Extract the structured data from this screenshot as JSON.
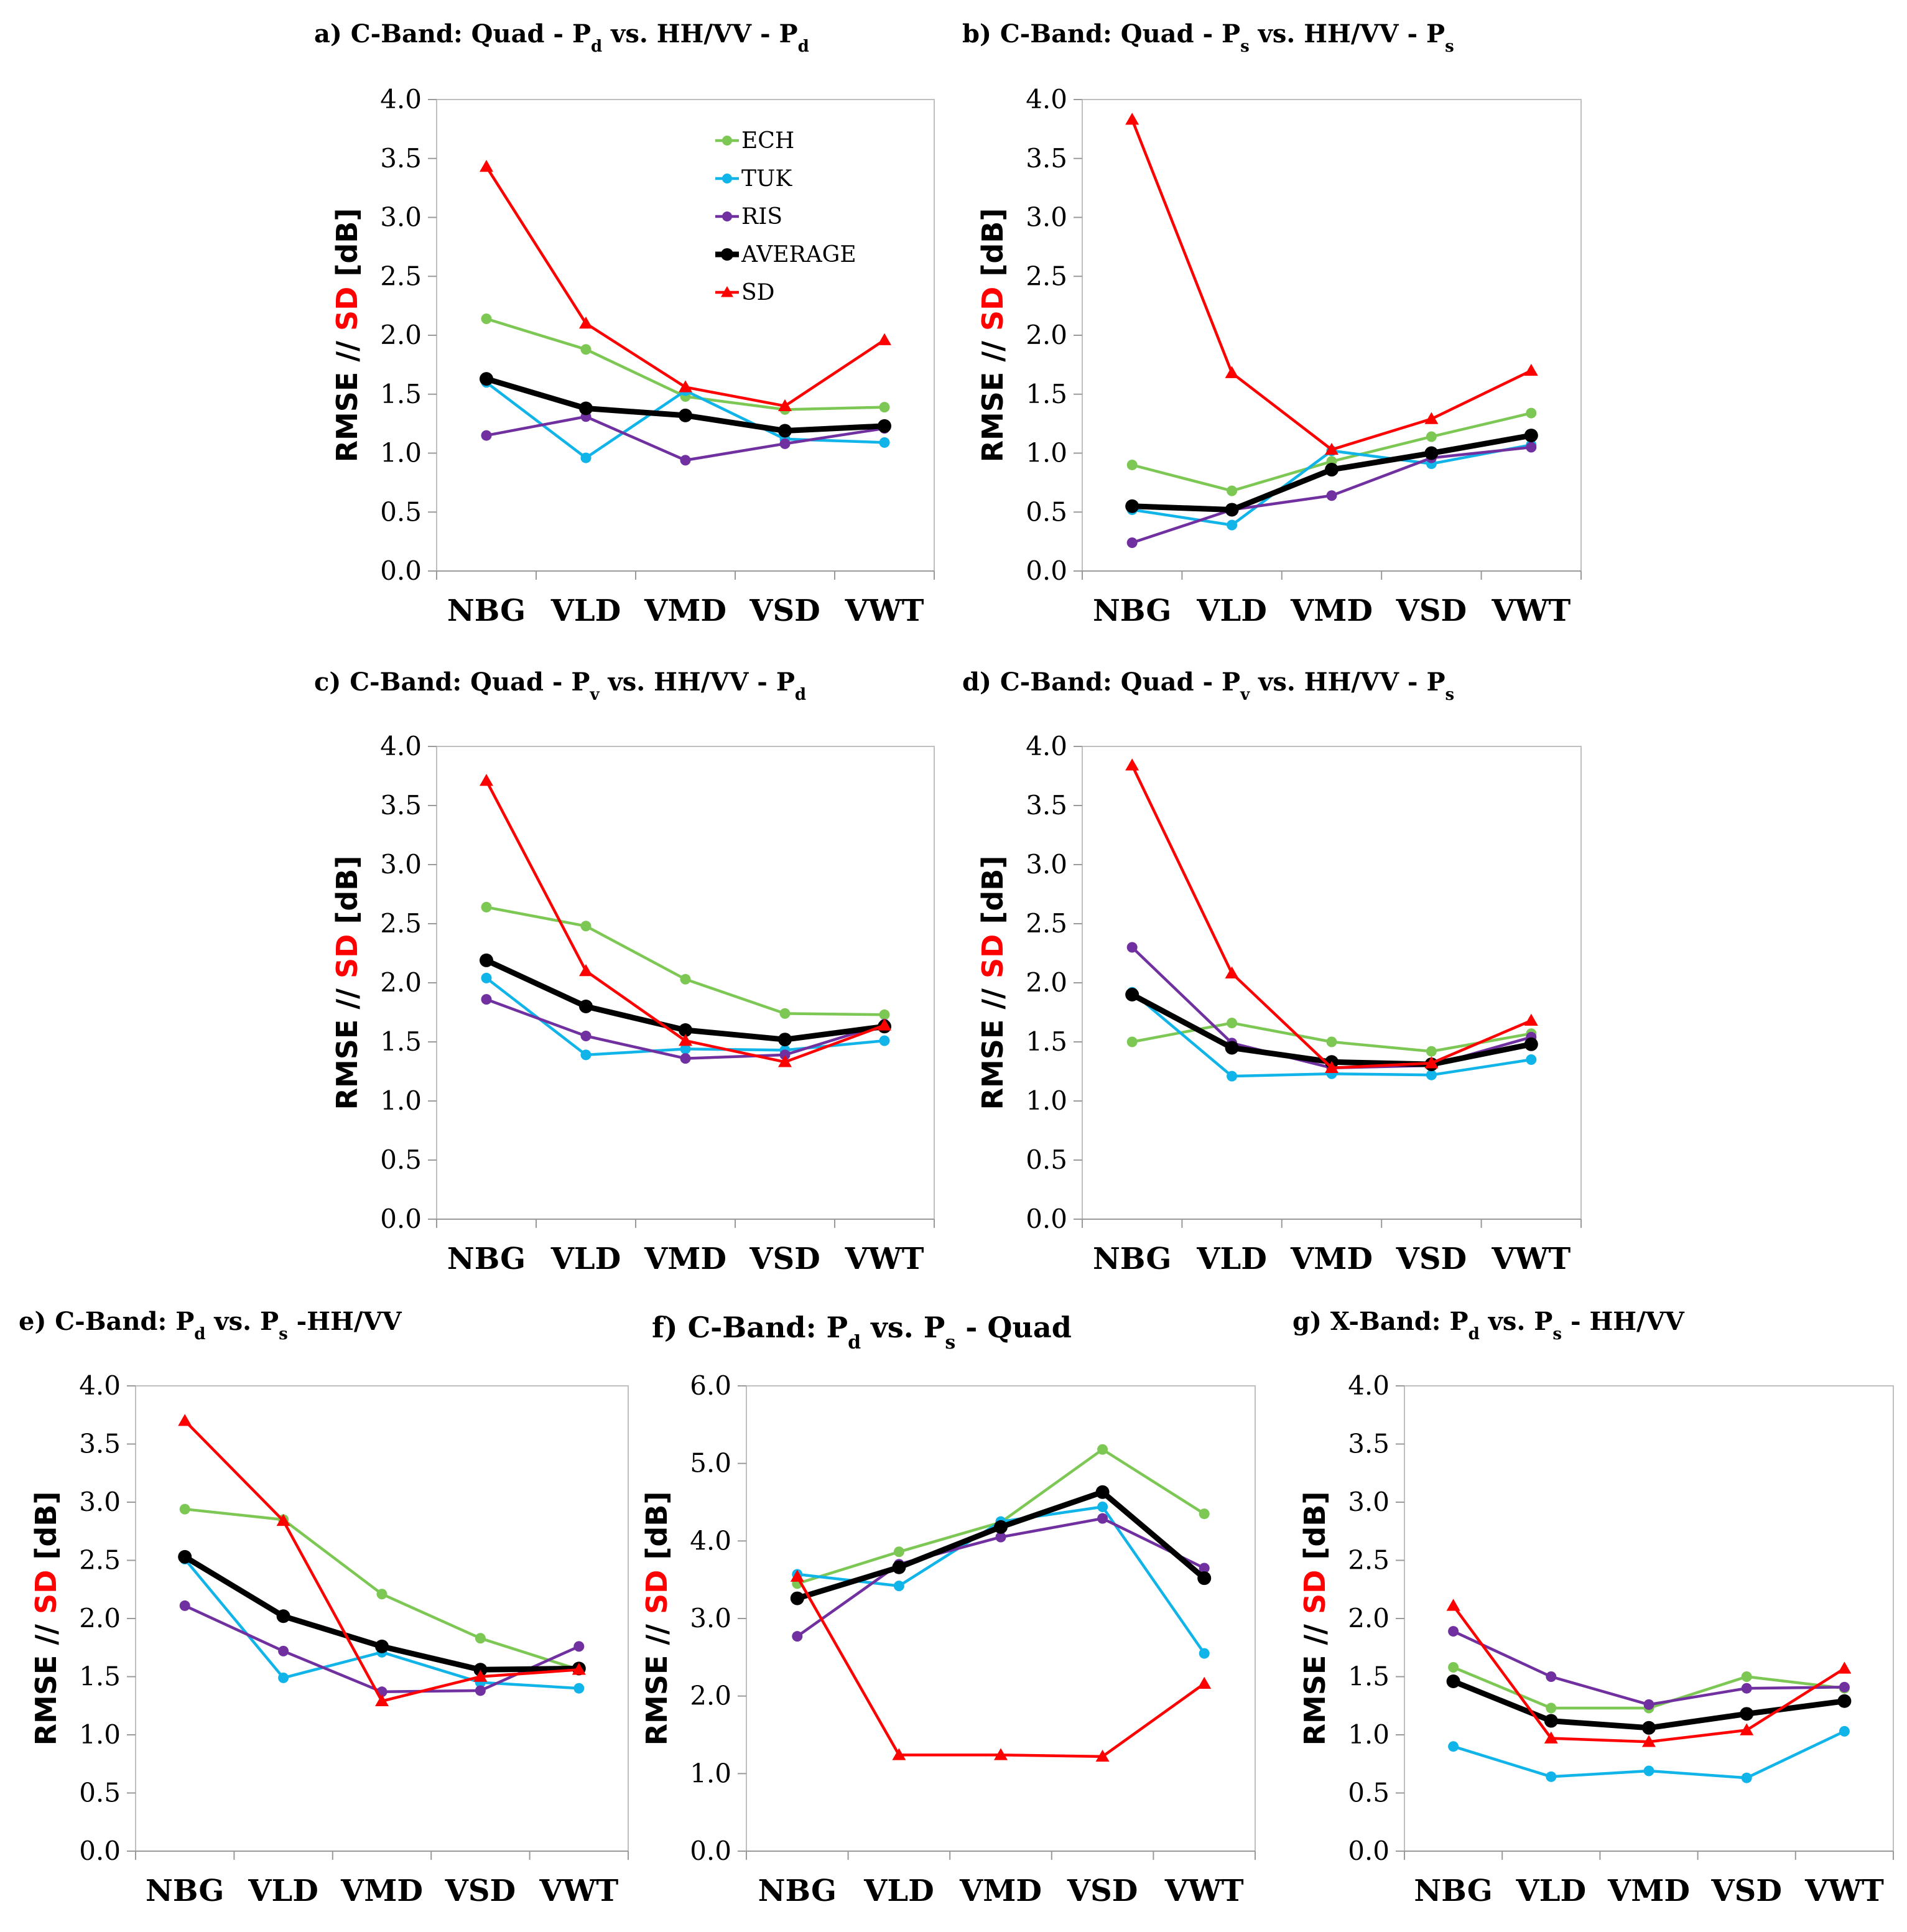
{
  "colors": {
    "ECH": "#7dc855",
    "TUK": "#10b4e8",
    "RIS": "#7030a0",
    "AVERAGE": "#000000",
    "SD": "#ff0000"
  },
  "legend": [
    "ECH",
    "TUK",
    "RIS",
    "AVERAGE",
    "SD"
  ],
  "ylabel_parts": {
    "prefix": "RMSE // ",
    "highlight": "SD",
    "suffix": " [dB]"
  },
  "chart_data": [
    {
      "id": "a",
      "type": "line",
      "title": {
        "prefix": "a) C-Band: Quad - P",
        "sub1": "d",
        "mid": " vs. HH/VV - P",
        "sub2": "d"
      },
      "categories": [
        "NBG",
        "VLD",
        "VMD",
        "VSD",
        "VWT"
      ],
      "ylabel": "RMSE // SD [dB]",
      "ylim": [
        0,
        4
      ],
      "yticks": [
        "0.0",
        "0.5",
        "1.0",
        "1.5",
        "2.0",
        "2.5",
        "3.0",
        "3.5",
        "4.0"
      ],
      "series": [
        {
          "name": "ECH",
          "values": [
            2.14,
            1.88,
            1.48,
            1.37,
            1.39
          ]
        },
        {
          "name": "TUK",
          "values": [
            1.6,
            0.96,
            1.53,
            1.12,
            1.09
          ]
        },
        {
          "name": "RIS",
          "values": [
            1.15,
            1.31,
            0.94,
            1.08,
            1.21
          ]
        },
        {
          "name": "AVERAGE",
          "values": [
            1.63,
            1.38,
            1.32,
            1.19,
            1.23
          ]
        },
        {
          "name": "SD",
          "values": [
            3.43,
            2.1,
            1.56,
            1.4,
            1.96
          ]
        }
      ]
    },
    {
      "id": "b",
      "type": "line",
      "title": {
        "prefix": "b) C-Band: Quad - P",
        "sub1": "s",
        "mid": " vs. HH/VV - P",
        "sub2": "s"
      },
      "categories": [
        "NBG",
        "VLD",
        "VMD",
        "VSD",
        "VWT"
      ],
      "ylabel": "RMSE // SD [dB]",
      "ylim": [
        0,
        4
      ],
      "yticks": [
        "0.0",
        "0.5",
        "1.0",
        "1.5",
        "2.0",
        "2.5",
        "3.0",
        "3.5",
        "4.0"
      ],
      "series": [
        {
          "name": "ECH",
          "values": [
            0.9,
            0.68,
            0.93,
            1.14,
            1.34
          ]
        },
        {
          "name": "TUK",
          "values": [
            0.52,
            0.39,
            1.02,
            0.91,
            1.07
          ]
        },
        {
          "name": "RIS",
          "values": [
            0.24,
            0.52,
            0.64,
            0.96,
            1.05
          ]
        },
        {
          "name": "AVERAGE",
          "values": [
            0.55,
            0.52,
            0.86,
            1.0,
            1.15
          ]
        },
        {
          "name": "SD",
          "values": [
            3.83,
            1.68,
            1.03,
            1.29,
            1.7
          ]
        }
      ]
    },
    {
      "id": "c",
      "type": "line",
      "title": {
        "prefix": "c) C-Band: Quad - P",
        "sub1": "v",
        "mid": " vs. HH/VV - P",
        "sub2": "d"
      },
      "categories": [
        "NBG",
        "VLD",
        "VMD",
        "VSD",
        "VWT"
      ],
      "ylabel": "RMSE // SD [dB]",
      "ylim": [
        0,
        4
      ],
      "yticks": [
        "0.0",
        "0.5",
        "1.0",
        "1.5",
        "2.0",
        "2.5",
        "3.0",
        "3.5",
        "4.0"
      ],
      "series": [
        {
          "name": "ECH",
          "values": [
            2.64,
            2.48,
            2.03,
            1.74,
            1.73
          ]
        },
        {
          "name": "TUK",
          "values": [
            2.04,
            1.39,
            1.44,
            1.43,
            1.51
          ]
        },
        {
          "name": "RIS",
          "values": [
            1.86,
            1.55,
            1.36,
            1.39,
            1.65
          ]
        },
        {
          "name": "AVERAGE",
          "values": [
            2.19,
            1.8,
            1.6,
            1.52,
            1.63
          ]
        },
        {
          "name": "SD",
          "values": [
            3.71,
            2.1,
            1.51,
            1.33,
            1.64
          ]
        }
      ]
    },
    {
      "id": "d",
      "type": "line",
      "title": {
        "prefix": "d) C-Band: Quad - P",
        "sub1": "v",
        "mid": " vs. HH/VV - P",
        "sub2": "s"
      },
      "categories": [
        "NBG",
        "VLD",
        "VMD",
        "VSD",
        "VWT"
      ],
      "ylabel": "RMSE // SD [dB]",
      "ylim": [
        0,
        4
      ],
      "yticks": [
        "0.0",
        "0.5",
        "1.0",
        "1.5",
        "2.0",
        "2.5",
        "3.0",
        "3.5",
        "4.0"
      ],
      "series": [
        {
          "name": "ECH",
          "values": [
            1.5,
            1.66,
            1.5,
            1.42,
            1.57
          ]
        },
        {
          "name": "TUK",
          "values": [
            1.92,
            1.21,
            1.23,
            1.22,
            1.35
          ]
        },
        {
          "name": "RIS",
          "values": [
            2.3,
            1.49,
            1.28,
            1.3,
            1.54
          ]
        },
        {
          "name": "AVERAGE",
          "values": [
            1.9,
            1.45,
            1.33,
            1.31,
            1.48
          ]
        },
        {
          "name": "SD",
          "values": [
            3.84,
            2.08,
            1.28,
            1.32,
            1.68
          ]
        }
      ]
    },
    {
      "id": "e",
      "type": "line",
      "title": {
        "prefix": "e) C-Band: P",
        "sub1": "d",
        "mid": " vs. P",
        "sub2": "s",
        "suffix": " -HH/VV"
      },
      "categories": [
        "NBG",
        "VLD",
        "VMD",
        "VSD",
        "VWT"
      ],
      "ylabel": "RMSE // SD [dB]",
      "ylim": [
        0,
        4
      ],
      "yticks": [
        "0.0",
        "0.5",
        "1.0",
        "1.5",
        "2.0",
        "2.5",
        "3.0",
        "3.5",
        "4.0"
      ],
      "series": [
        {
          "name": "ECH",
          "values": [
            2.94,
            2.85,
            2.21,
            1.83,
            1.56
          ]
        },
        {
          "name": "TUK",
          "values": [
            2.51,
            1.49,
            1.71,
            1.45,
            1.4
          ]
        },
        {
          "name": "RIS",
          "values": [
            2.11,
            1.72,
            1.37,
            1.38,
            1.76
          ]
        },
        {
          "name": "AVERAGE",
          "values": [
            2.53,
            2.02,
            1.76,
            1.56,
            1.57
          ]
        },
        {
          "name": "SD",
          "values": [
            3.7,
            2.84,
            1.29,
            1.5,
            1.56
          ]
        }
      ]
    },
    {
      "id": "f",
      "type": "line",
      "title": {
        "prefix": "f) C-Band: P",
        "sub1": "d",
        "mid": " vs. P",
        "sub2": "s",
        "suffix": " - Quad"
      },
      "categories": [
        "NBG",
        "VLD",
        "VMD",
        "VSD",
        "VWT"
      ],
      "ylabel": "RMSE // SD [dB]",
      "ylim": [
        0,
        6
      ],
      "yticks": [
        "0.0",
        "1.0",
        "2.0",
        "3.0",
        "4.0",
        "5.0",
        "6.0"
      ],
      "series": [
        {
          "name": "ECH",
          "values": [
            3.45,
            3.86,
            4.24,
            5.18,
            4.35
          ]
        },
        {
          "name": "TUK",
          "values": [
            3.57,
            3.42,
            4.25,
            4.44,
            2.55
          ]
        },
        {
          "name": "RIS",
          "values": [
            2.77,
            3.7,
            4.05,
            4.29,
            3.65
          ]
        },
        {
          "name": "AVERAGE",
          "values": [
            3.26,
            3.66,
            4.18,
            4.63,
            3.52
          ]
        },
        {
          "name": "SD",
          "values": [
            3.54,
            1.24,
            1.24,
            1.22,
            2.16
          ]
        }
      ]
    },
    {
      "id": "g",
      "type": "line",
      "title": {
        "prefix": "g) X-Band: P",
        "sub1": "d",
        "mid": " vs. P",
        "sub2": "s",
        "suffix": " - HH/VV"
      },
      "categories": [
        "NBG",
        "VLD",
        "VMD",
        "VSD",
        "VWT"
      ],
      "ylabel": "RMSE // SD [dB]",
      "ylim": [
        0,
        4
      ],
      "yticks": [
        "0.0",
        "0.5",
        "1.0",
        "1.5",
        "2.0",
        "2.5",
        "3.0",
        "3.5",
        "4.0"
      ],
      "series": [
        {
          "name": "ECH",
          "values": [
            1.58,
            1.23,
            1.23,
            1.5,
            1.4
          ]
        },
        {
          "name": "TUK",
          "values": [
            0.9,
            0.64,
            0.69,
            0.63,
            1.03
          ]
        },
        {
          "name": "RIS",
          "values": [
            1.89,
            1.5,
            1.26,
            1.4,
            1.41
          ]
        },
        {
          "name": "AVERAGE",
          "values": [
            1.46,
            1.12,
            1.06,
            1.18,
            1.29
          ]
        },
        {
          "name": "SD",
          "values": [
            2.11,
            0.97,
            0.94,
            1.04,
            1.57
          ]
        }
      ]
    }
  ]
}
